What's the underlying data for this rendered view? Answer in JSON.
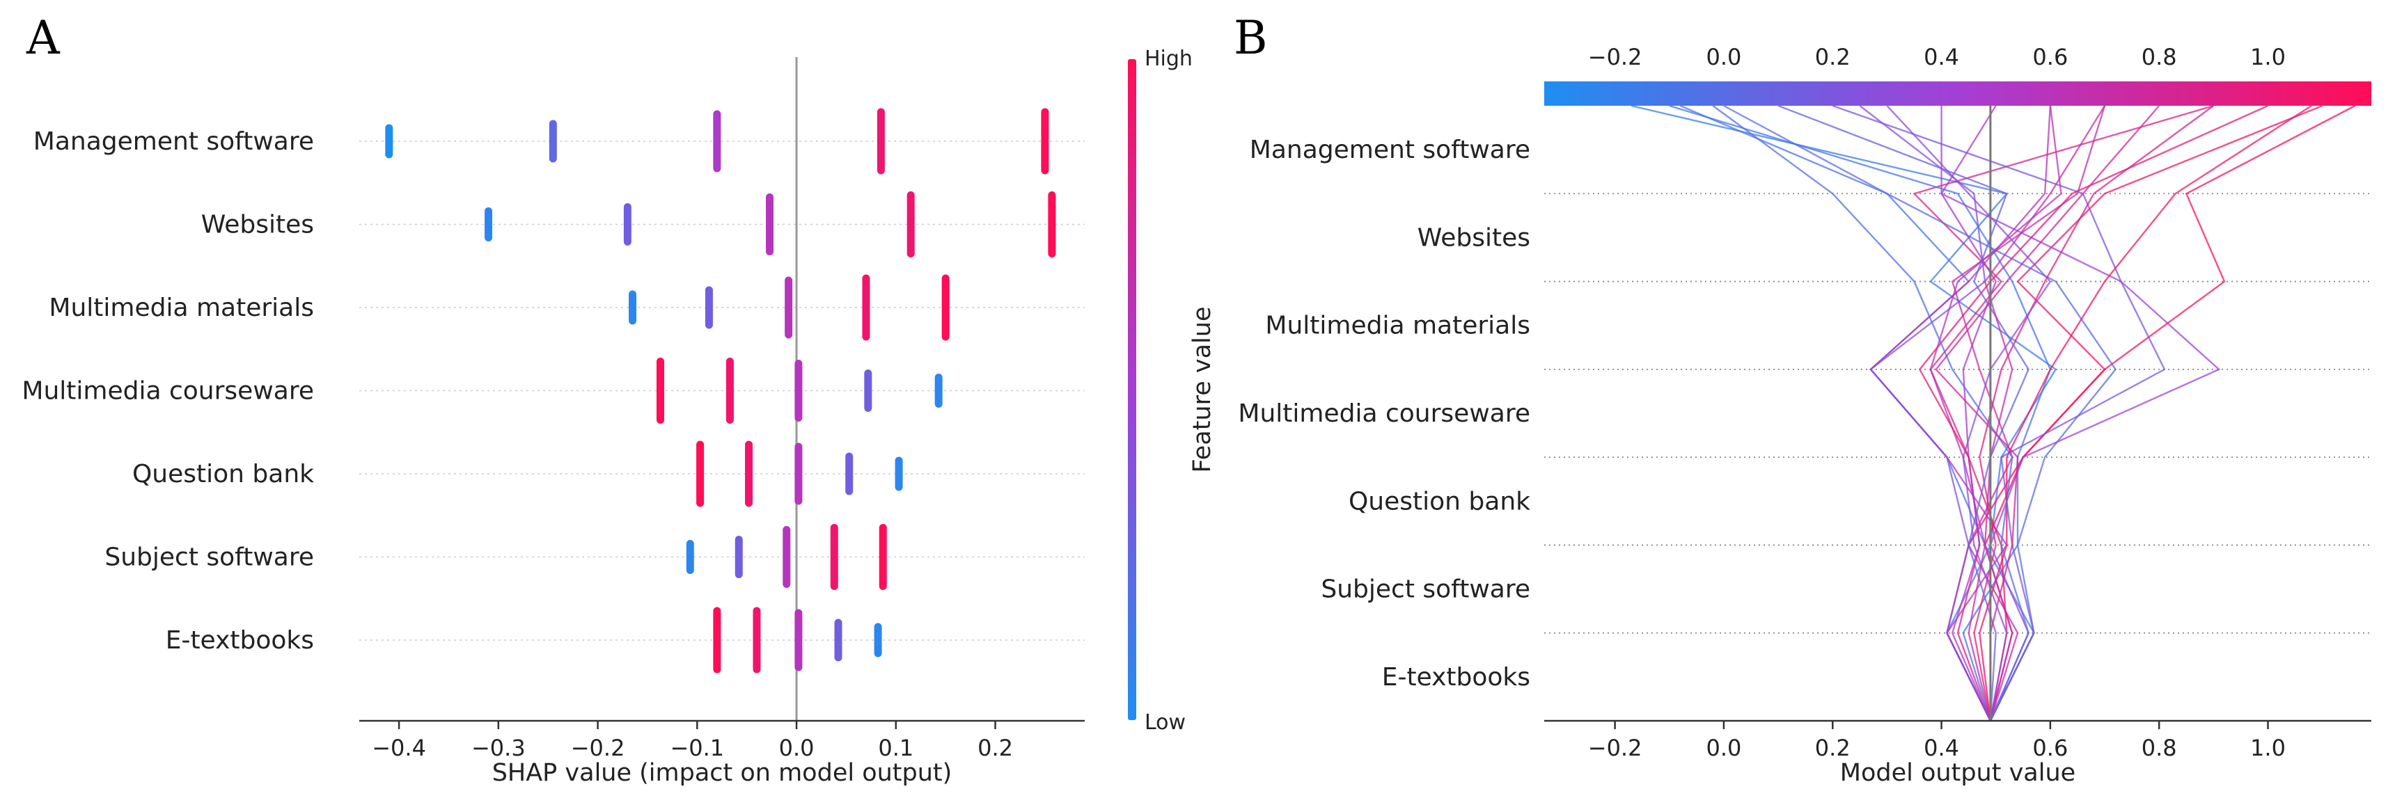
{
  "figure": {
    "panel_a_letter": "A",
    "panel_b_letter": "B"
  },
  "colors": {
    "low": "#1f8ef1",
    "high": "#ff0d57",
    "axis": "#333333",
    "zero_line": "#999999",
    "grid": "#cccccc"
  },
  "chart_data": [
    {
      "type": "scatter",
      "subtype": "shap-beeswarm",
      "title": "",
      "xlabel": "SHAP value (impact on model output)",
      "xlim": [
        -0.44,
        0.29
      ],
      "xticks": [
        "−0.4",
        "−0.3",
        "−0.2",
        "−0.1",
        "0.0",
        "0.1",
        "0.2"
      ],
      "xtick_values": [
        -0.4,
        -0.3,
        -0.2,
        -0.1,
        0.0,
        0.1,
        0.2
      ],
      "features": [
        "Management software",
        "Websites",
        "Multimedia materials",
        "Multimedia courseware",
        "Question bank",
        "Subject software",
        "E-textbooks"
      ],
      "colorbar": {
        "label": "Feature value",
        "high_label": "High",
        "low_label": "Low"
      },
      "series": [
        {
          "name": "Management software",
          "points": [
            {
              "x": -0.41,
              "v": 0.0
            },
            {
              "x": -0.245,
              "v": 0.25
            },
            {
              "x": -0.08,
              "v": 0.55
            },
            {
              "x": 0.085,
              "v": 0.9
            },
            {
              "x": 0.25,
              "v": 1.0
            }
          ]
        },
        {
          "name": "Websites",
          "points": [
            {
              "x": -0.31,
              "v": 0.05
            },
            {
              "x": -0.17,
              "v": 0.3
            },
            {
              "x": -0.027,
              "v": 0.6
            },
            {
              "x": 0.115,
              "v": 0.92
            },
            {
              "x": 0.257,
              "v": 1.0
            }
          ]
        },
        {
          "name": "Multimedia materials",
          "points": [
            {
              "x": -0.165,
              "v": 0.05
            },
            {
              "x": -0.088,
              "v": 0.3
            },
            {
              "x": -0.008,
              "v": 0.6
            },
            {
              "x": 0.07,
              "v": 0.92
            },
            {
              "x": 0.15,
              "v": 1.0
            }
          ]
        },
        {
          "name": "Multimedia courseware",
          "points": [
            {
              "x": -0.137,
              "v": 1.0
            },
            {
              "x": -0.067,
              "v": 0.92
            },
            {
              "x": 0.002,
              "v": 0.6
            },
            {
              "x": 0.072,
              "v": 0.3
            },
            {
              "x": 0.143,
              "v": 0.05
            }
          ]
        },
        {
          "name": "Question bank",
          "points": [
            {
              "x": -0.097,
              "v": 1.0
            },
            {
              "x": -0.048,
              "v": 0.92
            },
            {
              "x": 0.002,
              "v": 0.6
            },
            {
              "x": 0.053,
              "v": 0.3
            },
            {
              "x": 0.103,
              "v": 0.05
            }
          ]
        },
        {
          "name": "Subject software",
          "points": [
            {
              "x": -0.107,
              "v": 0.05
            },
            {
              "x": -0.058,
              "v": 0.3
            },
            {
              "x": -0.01,
              "v": 0.6
            },
            {
              "x": 0.038,
              "v": 0.92
            },
            {
              "x": 0.087,
              "v": 1.0
            }
          ]
        },
        {
          "name": "E-textbooks",
          "points": [
            {
              "x": -0.08,
              "v": 1.0
            },
            {
              "x": -0.04,
              "v": 0.92
            },
            {
              "x": 0.002,
              "v": 0.6
            },
            {
              "x": 0.042,
              "v": 0.3
            },
            {
              "x": 0.082,
              "v": 0.05
            }
          ]
        }
      ]
    },
    {
      "type": "line",
      "subtype": "shap-decision-plot",
      "title": "",
      "xlabel": "Model output value",
      "xlim": [
        -0.33,
        1.19
      ],
      "xticks": [
        "−0.2",
        "0.0",
        "0.2",
        "0.4",
        "0.6",
        "0.8",
        "1.0"
      ],
      "xtick_values": [
        -0.2,
        0.0,
        0.2,
        0.4,
        0.6,
        0.8,
        1.0
      ],
      "top_xticks": [
        "−0.2",
        "0.0",
        "0.2",
        "0.4",
        "0.6",
        "0.8",
        "1.0"
      ],
      "base_value": 0.49,
      "features_top_to_bottom": [
        "Management software",
        "Websites",
        "Multimedia materials",
        "Multimedia courseware",
        "Question bank",
        "Subject software",
        "E-textbooks"
      ],
      "series": [
        {
          "name": "path-01",
          "path": [
            0.49,
            0.41,
            0.49,
            0.51,
            0.61,
            0.38,
            0.52,
            -0.17
          ]
        },
        {
          "name": "path-02",
          "path": [
            0.49,
            0.41,
            0.45,
            0.55,
            0.7,
            0.54,
            0.7,
            1.1
          ]
        },
        {
          "name": "path-03",
          "path": [
            0.49,
            0.53,
            0.48,
            0.55,
            0.7,
            0.92,
            0.85,
            1.16
          ]
        },
        {
          "name": "path-04",
          "path": [
            0.49,
            0.57,
            0.48,
            0.41,
            0.27,
            0.45,
            0.3,
            -0.08
          ]
        },
        {
          "name": "path-05",
          "path": [
            0.49,
            0.41,
            0.52,
            0.41,
            0.27,
            0.45,
            0.59,
            0.6
          ]
        },
        {
          "name": "path-06",
          "path": [
            0.49,
            0.43,
            0.47,
            0.45,
            0.38,
            0.51,
            0.35,
            0.9
          ]
        },
        {
          "name": "path-07",
          "path": [
            0.49,
            0.57,
            0.54,
            0.59,
            0.72,
            0.61,
            0.3,
            0.0
          ]
        },
        {
          "name": "path-08",
          "path": [
            0.49,
            0.41,
            0.45,
            0.41,
            0.27,
            0.48,
            0.46,
            0.25
          ]
        },
        {
          "name": "path-09",
          "path": [
            0.49,
            0.57,
            0.53,
            0.51,
            0.81,
            0.73,
            0.66,
            0.2
          ]
        },
        {
          "name": "path-10",
          "path": [
            0.49,
            0.53,
            0.48,
            0.44,
            0.38,
            0.43,
            0.62,
            0.6
          ]
        },
        {
          "name": "path-11",
          "path": [
            0.49,
            0.44,
            0.54,
            0.54,
            0.6,
            0.53,
            0.43,
            -0.1
          ]
        },
        {
          "name": "path-12",
          "path": [
            0.49,
            0.46,
            0.5,
            0.47,
            0.51,
            0.59,
            0.68,
            0.9
          ]
        },
        {
          "name": "path-13",
          "path": [
            0.49,
            0.54,
            0.45,
            0.53,
            0.47,
            0.42,
            0.65,
            0.7
          ]
        },
        {
          "name": "path-14",
          "path": [
            0.49,
            0.56,
            0.49,
            0.55,
            0.91,
            0.73,
            0.4,
            0.4
          ]
        },
        {
          "name": "path-15",
          "path": [
            0.49,
            0.42,
            0.47,
            0.45,
            0.44,
            0.5,
            0.4,
            0.5
          ]
        },
        {
          "name": "path-16",
          "path": [
            0.49,
            0.52,
            0.51,
            0.45,
            0.36,
            0.49,
            0.64,
            1.0
          ]
        },
        {
          "name": "path-17",
          "path": [
            0.49,
            0.5,
            0.45,
            0.49,
            0.56,
            0.46,
            0.52,
            0.1
          ]
        },
        {
          "name": "path-18",
          "path": [
            0.49,
            0.47,
            0.52,
            0.52,
            0.6,
            0.7,
            0.83,
            1.08
          ]
        },
        {
          "name": "path-19",
          "path": [
            0.49,
            0.56,
            0.51,
            0.53,
            0.42,
            0.35,
            0.2,
            -0.02
          ]
        },
        {
          "name": "path-20",
          "path": [
            0.49,
            0.45,
            0.48,
            0.49,
            0.53,
            0.48,
            0.6,
            0.7
          ]
        },
        {
          "name": "path-21",
          "path": [
            0.49,
            0.49,
            0.53,
            0.54,
            0.39,
            0.52,
            0.66,
            0.8
          ]
        },
        {
          "name": "path-22",
          "path": [
            0.49,
            0.52,
            0.46,
            0.44,
            0.49,
            0.6,
            0.45,
            0.3
          ]
        }
      ]
    }
  ]
}
